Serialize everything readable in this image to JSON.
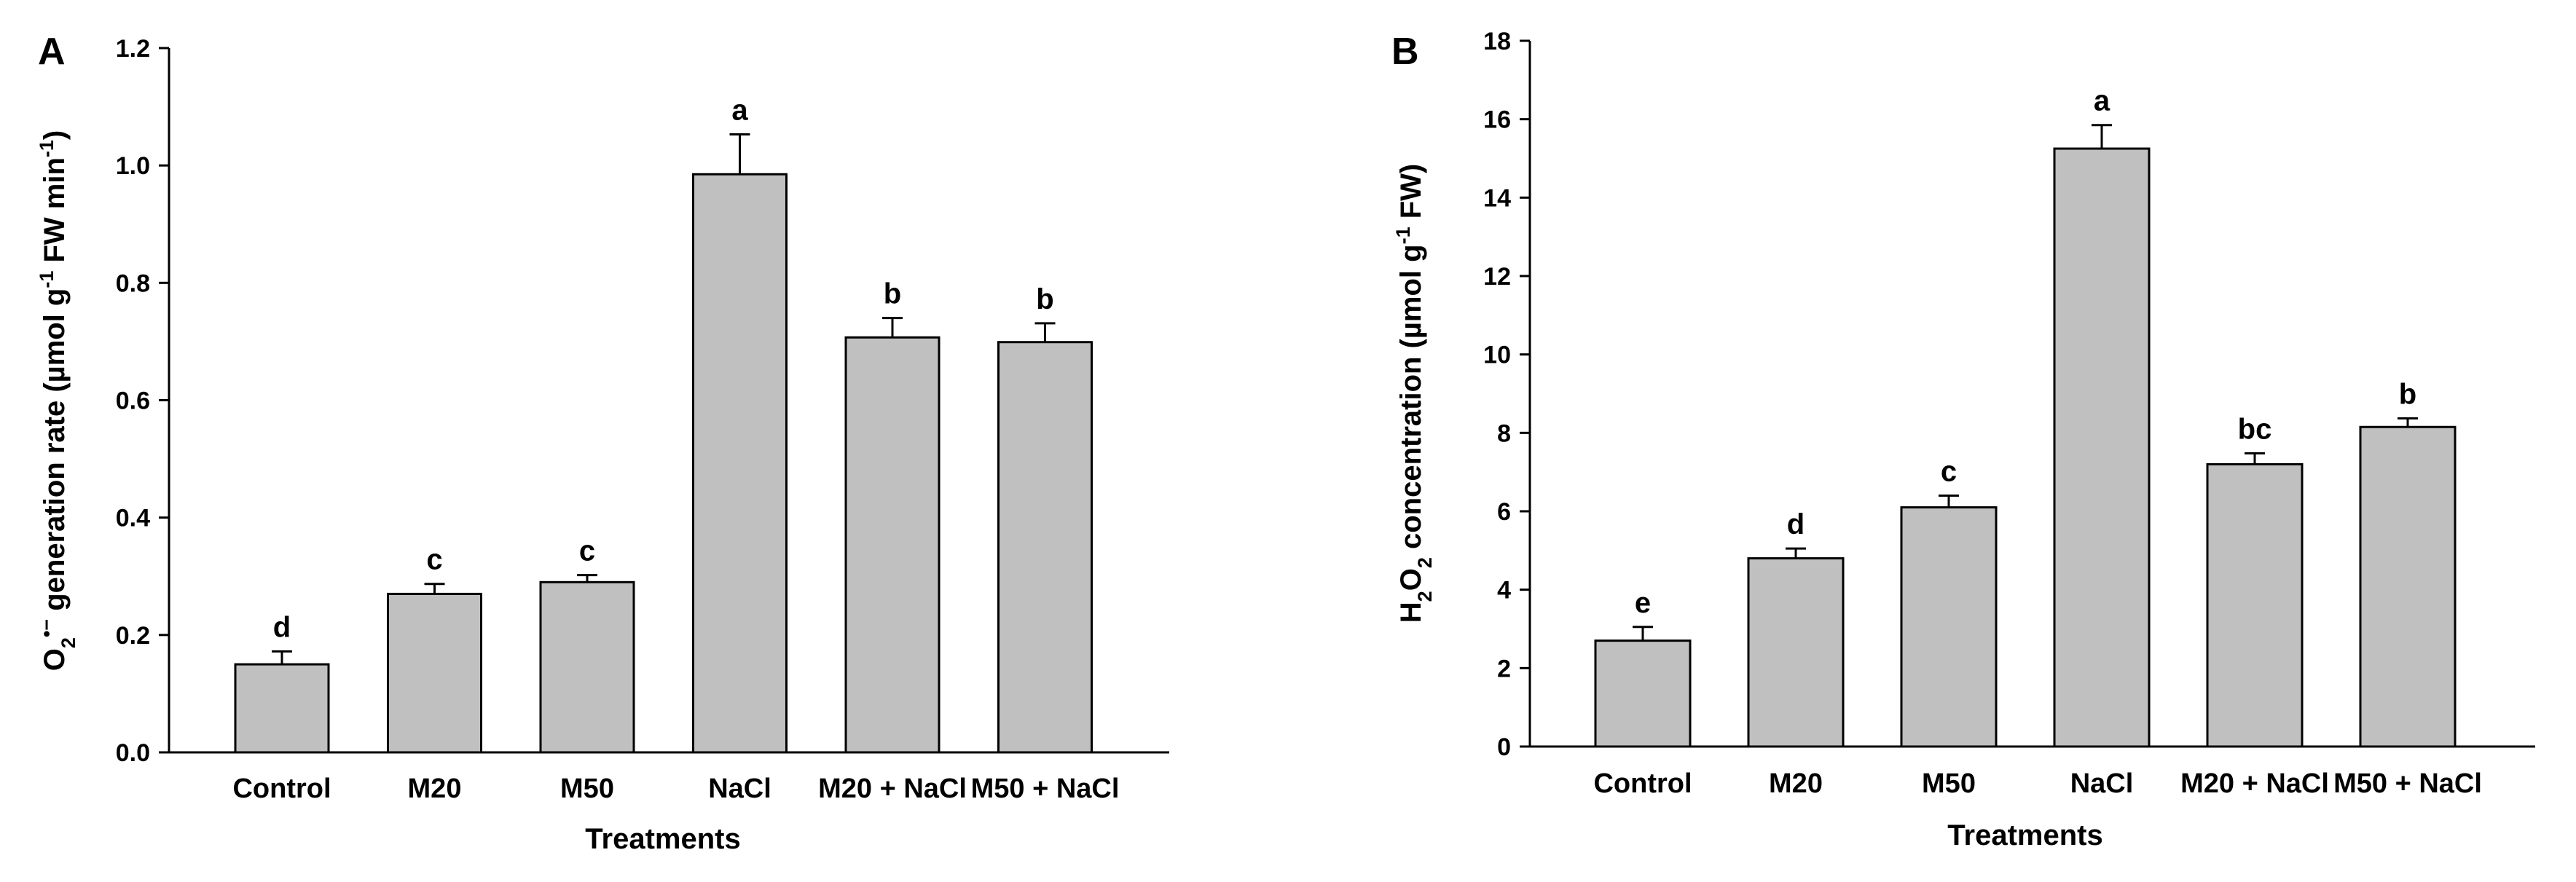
{
  "chart_data": [
    {
      "panel": "A",
      "type": "bar",
      "categories": [
        "Control",
        "M20",
        "M50",
        "NaCl",
        "M20 + NaCl",
        "M50 + NaCl"
      ],
      "values": [
        0.15,
        0.27,
        0.29,
        0.985,
        0.707,
        0.699
      ],
      "errors": [
        0.022,
        0.017,
        0.012,
        0.068,
        0.033,
        0.032
      ],
      "significance": [
        "d",
        "c",
        "c",
        "a",
        "b",
        "b"
      ],
      "xlabel": "Treatments",
      "ylabel": {
        "prefix": "O",
        "sub1": "2",
        "sup1": "•−",
        "middle": " generation rate (µmol g",
        "sup2": "-1",
        "between": " FW min",
        "sup3": "-1",
        "suffix": ")"
      },
      "ylim": [
        0,
        1.2
      ],
      "yticks": [
        "0.0",
        "0.2",
        "0.4",
        "0.6",
        "0.8",
        "1.0",
        "1.2"
      ],
      "bar_color": "#c0c0c0"
    },
    {
      "panel": "B",
      "type": "bar",
      "categories": [
        "Control",
        "M20",
        "M50",
        "NaCl",
        "M20 + NaCl",
        "M50 + NaCl"
      ],
      "values": [
        2.7,
        4.8,
        6.1,
        15.25,
        7.2,
        8.15
      ],
      "errors": [
        0.35,
        0.25,
        0.3,
        0.6,
        0.28,
        0.22
      ],
      "significance": [
        "e",
        "d",
        "c",
        "a",
        "bc",
        "b"
      ],
      "xlabel": "Treatments",
      "ylabel": {
        "prefix": "H",
        "sub1": "2",
        "mid": "O",
        "sub2": "2",
        "middle": " concentration (µmol g",
        "sup1": "-1",
        "suffix": " FW)"
      },
      "ylim": [
        0,
        18
      ],
      "yticks": [
        "0",
        "2",
        "4",
        "6",
        "8",
        "10",
        "12",
        "14",
        "16",
        "18"
      ],
      "bar_color": "#c0c0c0"
    }
  ]
}
